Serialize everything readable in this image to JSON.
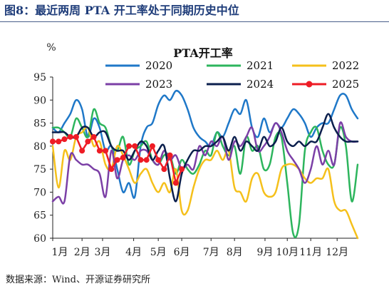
{
  "figure_title": "图8：最近两周 PTA 开工率处于同期历史中位",
  "source": "数据来源：Wind、开源证券研究所",
  "colors": {
    "2020": "#1f78c8",
    "2021": "#2db55d",
    "2022": "#f5c01b",
    "2023": "#7b3fa6",
    "2024": "#0b1f4d",
    "2025": "#ee1c25",
    "title": "#1f3d7a"
  },
  "chart_data": {
    "type": "line",
    "title": "PTA开工率",
    "ylabel": "%",
    "xlabel": "",
    "ylim": [
      60,
      95
    ],
    "xlim": [
      1,
      53
    ],
    "yticks": [
      60,
      65,
      70,
      75,
      80,
      85,
      90,
      95
    ],
    "xticks": [
      {
        "x": 1,
        "label": "1月"
      },
      {
        "x": 6,
        "label": "2月"
      },
      {
        "x": 9.5,
        "label": "3月"
      },
      {
        "x": 14.8,
        "label": "4月"
      },
      {
        "x": 19,
        "label": "5月"
      },
      {
        "x": 23,
        "label": "6月"
      },
      {
        "x": 28,
        "label": "7月"
      },
      {
        "x": 32,
        "label": "8月"
      },
      {
        "x": 37.2,
        "label": "9月"
      },
      {
        "x": 41,
        "label": "10月"
      },
      {
        "x": 45,
        "label": "11月"
      },
      {
        "x": 49.5,
        "label": "12月"
      }
    ],
    "grid": false,
    "legend": "top-inside",
    "series": [
      {
        "name": "2020",
        "x": [
          1,
          2,
          3,
          4,
          5,
          6,
          7,
          8,
          9,
          10,
          11,
          12,
          13,
          14,
          15,
          16,
          17,
          18,
          19,
          20,
          21,
          22,
          23,
          24,
          25,
          26,
          27,
          28,
          29,
          30,
          31,
          32,
          33,
          34,
          35,
          36,
          37,
          38,
          39,
          40,
          41,
          42,
          43,
          44,
          45,
          46,
          47,
          48,
          49,
          50,
          51,
          52,
          53
        ],
        "values": [
          84,
          83,
          85,
          87,
          90,
          88,
          82,
          86,
          84,
          79,
          80,
          75,
          70,
          72,
          69,
          80,
          84,
          85,
          89,
          91,
          90,
          92,
          91,
          88,
          84,
          82,
          81,
          80,
          83,
          82,
          85,
          88,
          87,
          90,
          84,
          82,
          86,
          83,
          85,
          84,
          86,
          88,
          87,
          85,
          82,
          84,
          85,
          85,
          88,
          91,
          91,
          88,
          86
        ]
      },
      {
        "name": "2021",
        "x": [
          1,
          2,
          3,
          4,
          5,
          6,
          7,
          8,
          9,
          10,
          11,
          12,
          13,
          14,
          15,
          16,
          17,
          18,
          19,
          20,
          21,
          22,
          23,
          24,
          25,
          26,
          27,
          28,
          29,
          30,
          31,
          32,
          33,
          34,
          35,
          36,
          37,
          38,
          39,
          40,
          41,
          42,
          43,
          44,
          45,
          46,
          47,
          48,
          49,
          50,
          51,
          52,
          53
        ],
        "values": [
          84,
          84,
          83,
          82,
          86,
          84,
          82,
          88,
          85,
          84,
          80,
          79,
          82,
          76,
          79,
          80,
          81,
          77,
          76,
          78,
          78,
          74,
          77,
          75,
          74,
          76,
          79,
          78,
          83,
          80,
          78,
          80,
          74,
          82,
          79,
          80,
          75,
          76,
          82,
          82,
          72,
          61,
          63,
          79,
          83,
          84,
          79,
          76,
          76,
          84,
          80,
          68,
          76
        ]
      },
      {
        "name": "2022",
        "x": [
          1,
          2,
          3,
          4,
          5,
          6,
          7,
          8,
          9,
          10,
          11,
          12,
          13,
          14,
          15,
          16,
          17,
          18,
          19,
          20,
          21,
          22,
          23,
          24,
          25,
          26,
          27,
          28,
          29,
          30,
          31,
          32,
          33,
          34,
          35,
          36,
          37,
          38,
          39,
          40,
          41,
          42,
          43,
          44,
          45,
          46,
          47,
          48,
          49,
          50,
          51,
          52,
          53
        ],
        "values": [
          80,
          71,
          79,
          77,
          82,
          83,
          84,
          80,
          81,
          76,
          75,
          80,
          78,
          75,
          72,
          74,
          75,
          72,
          70,
          72,
          70,
          75,
          66,
          66,
          71,
          75,
          77,
          77,
          79,
          77,
          79,
          71,
          70,
          68,
          73,
          74,
          70,
          69,
          70,
          75,
          76,
          76,
          75,
          73,
          72,
          73,
          73,
          75,
          68,
          66,
          66,
          63,
          60
        ]
      },
      {
        "name": "2023",
        "x": [
          1,
          2,
          3,
          4,
          5,
          6,
          7,
          8,
          9,
          10,
          11,
          12,
          13,
          14,
          15,
          16,
          17,
          18,
          19,
          20,
          21,
          22,
          23,
          24,
          25,
          26,
          27,
          28,
          29,
          30,
          31,
          32,
          33,
          34,
          35,
          36,
          37,
          38,
          39,
          40,
          41,
          42,
          43,
          44,
          45,
          46,
          47,
          48,
          49,
          50,
          51,
          52,
          53
        ],
        "values": [
          68,
          69,
          68,
          78,
          77,
          76,
          76,
          75,
          74,
          69,
          79,
          73,
          77,
          78,
          77,
          79,
          79,
          77,
          76,
          79,
          77,
          78,
          75,
          76,
          75,
          80,
          78,
          81,
          80,
          82,
          77,
          81,
          80,
          82,
          84,
          79,
          80,
          82,
          85,
          83,
          79,
          77,
          75,
          72,
          75,
          80,
          76,
          79,
          76,
          85,
          82,
          81,
          81
        ]
      },
      {
        "name": "2024",
        "x": [
          1,
          2,
          3,
          4,
          5,
          6,
          7,
          8,
          9,
          10,
          11,
          12,
          13,
          14,
          15,
          16,
          17,
          18,
          19,
          20,
          21,
          22,
          23,
          24,
          25,
          26,
          27,
          28,
          29,
          30,
          31,
          32,
          33,
          34,
          35,
          36,
          37,
          38,
          39,
          40,
          41,
          42,
          43,
          44,
          45,
          46,
          47,
          48,
          49,
          50,
          51,
          52,
          53
        ],
        "values": [
          83,
          83,
          83,
          82,
          82,
          84,
          84,
          82,
          83,
          83,
          80,
          79,
          79,
          77,
          79,
          81,
          80,
          77,
          79,
          80,
          73,
          68,
          74,
          77,
          79,
          79,
          80,
          80,
          81,
          82,
          79,
          82,
          79,
          81,
          80,
          79,
          82,
          80,
          81,
          84,
          81,
          80,
          81,
          80,
          81,
          81,
          84,
          87,
          84,
          82,
          81,
          81,
          81
        ]
      },
      {
        "name": "2025",
        "x": [
          1,
          2,
          3,
          4,
          5,
          6,
          7,
          8,
          9,
          10,
          11,
          12,
          13,
          14,
          15,
          16,
          17,
          18,
          19,
          20,
          21,
          22,
          23
        ],
        "values": [
          81,
          81,
          81.5,
          82,
          82,
          79,
          81,
          82,
          79,
          79,
          75,
          77,
          77.5,
          80,
          80,
          77,
          77,
          80,
          77,
          75,
          78,
          72,
          75
        ]
      }
    ]
  }
}
